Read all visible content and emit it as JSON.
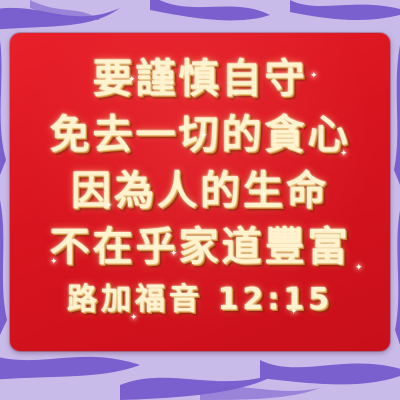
{
  "background": {
    "base_color": "#c3b3e6",
    "stripe_color": "#6a4bc8",
    "pattern": "zebra-stripes"
  },
  "card": {
    "color": "#d8141f",
    "text_color": "#fff2cf",
    "text_outline_color": "#c47a2a"
  },
  "verse": {
    "lines": [
      "要謹慎自守",
      "免去一切的貪心",
      "因為人的生命",
      "不在乎家道豐富"
    ],
    "reference": "路加福音 12:15"
  }
}
